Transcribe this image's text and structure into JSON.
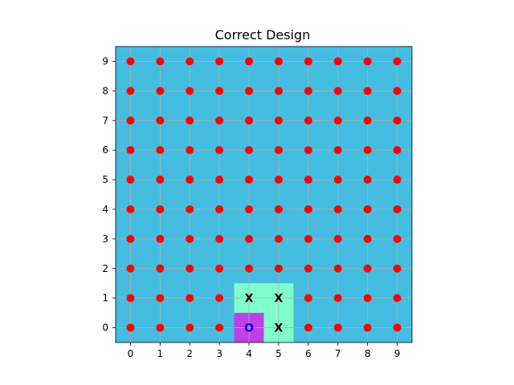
{
  "chart_data": {
    "type": "scatter",
    "title": "Correct Design",
    "xlabel": "",
    "ylabel": "",
    "xlim": [
      -0.5,
      9.5
    ],
    "ylim": [
      -0.5,
      9.5
    ],
    "xticks": [
      0,
      1,
      2,
      3,
      4,
      5,
      6,
      7,
      8,
      9
    ],
    "yticks": [
      0,
      1,
      2,
      3,
      4,
      5,
      6,
      7,
      8,
      9
    ],
    "grid": true,
    "background_color": "#45bde0",
    "point_color": "#ff0000",
    "points": "all integer grid points from (0,0) to (9,9) except cells occupied by markers",
    "cells": [
      {
        "x": 4,
        "y": 0,
        "color": "#bf40e6",
        "marker": "O",
        "marker_color": "#0000ff"
      },
      {
        "x": 5,
        "y": 0,
        "color": "#80ffcc",
        "marker": "X",
        "marker_color": "#000000"
      },
      {
        "x": 4,
        "y": 1,
        "color": "#80ffcc",
        "marker": "X",
        "marker_color": "#000000"
      },
      {
        "x": 5,
        "y": 1,
        "color": "#80ffcc",
        "marker": "X",
        "marker_color": "#000000"
      }
    ]
  }
}
